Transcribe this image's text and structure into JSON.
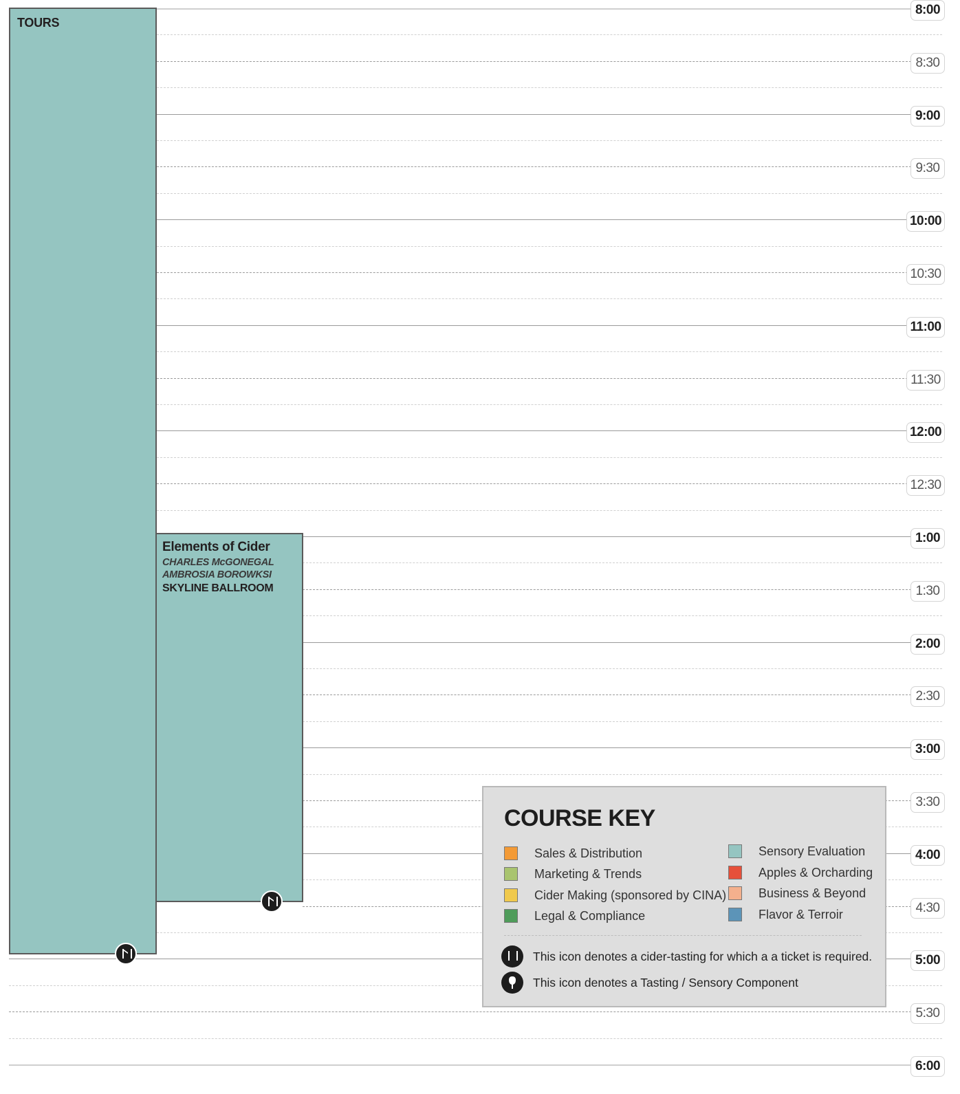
{
  "times": [
    "8:00",
    "8:30",
    "9:00",
    "9:30",
    "10:00",
    "10:30",
    "11:00",
    "11:30",
    "12:00",
    "12:30",
    "1:00",
    "1:30",
    "2:00",
    "2:30",
    "3:00",
    "3:30",
    "4:00",
    "4:30",
    "5:00",
    "5:30",
    "6:00"
  ],
  "sessions": {
    "tours": {
      "title": "TOURS"
    },
    "elements": {
      "title": "Elements of Cider",
      "speakers": [
        "CHARLES McGONEGAL",
        "AMBROSIA BOROWKSI"
      ],
      "room": "SKYLINE BALLROOM"
    }
  },
  "key": {
    "title": "COURSE KEY",
    "left": [
      {
        "label": "Sales & Distribution",
        "color": "#f39a36"
      },
      {
        "label": "Marketing & Trends",
        "color": "#a9c46f"
      },
      {
        "label": "Cider Making (sponsored by CINA)",
        "color": "#f0c94c"
      },
      {
        "label": "Legal & Compliance",
        "color": "#4f9c5a"
      }
    ],
    "right": [
      {
        "label": "Sensory Evaluation",
        "color": "#95c5c1"
      },
      {
        "label": "Apples & Orcharding",
        "color": "#e6503a"
      },
      {
        "label": "Business & Beyond",
        "color": "#f4b08d"
      },
      {
        "label": "Flavor & Terroir",
        "color": "#5c94b8"
      }
    ],
    "notes": {
      "ticket": "This icon denotes a cider-tasting for which a a ticket is required.",
      "tasting": "This icon denotes a Tasting / Sensory Component"
    }
  }
}
